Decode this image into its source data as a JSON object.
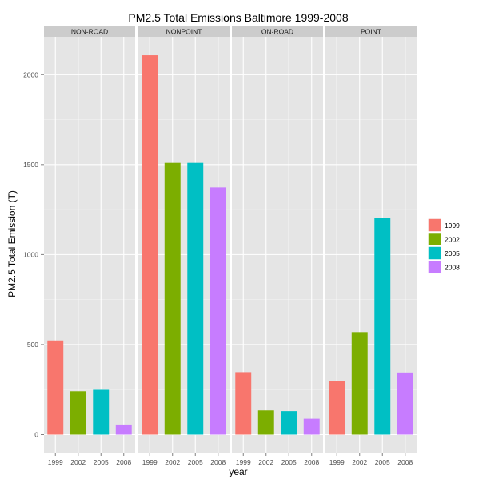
{
  "chart_data": {
    "type": "bar",
    "title": "PM2.5 Total Emissions Baltimore 1999-2008",
    "xlabel": "year",
    "ylabel": "PM2.5 Total Emission (T)",
    "categories": [
      "1999",
      "2002",
      "2005",
      "2008"
    ],
    "ylim": [
      -100,
      2210
    ],
    "yticks": [
      "0",
      "500",
      "1000",
      "1500",
      "2000"
    ],
    "legend_position": "right",
    "grid": true,
    "colors": {
      "1999": "#F8766D",
      "2002": "#7CAE00",
      "2005": "#00BFC4",
      "2008": "#C77CFF",
      "panel_background": "#E5E5E5",
      "strip_background": "#CCCCCC",
      "grid_line": "#FFFFFF"
    },
    "legend": [
      "1999",
      "2002",
      "2005",
      "2008"
    ],
    "facets": [
      {
        "name": "NON-ROAD",
        "values": [
          522.9,
          240.8,
          248.9,
          55.8
        ]
      },
      {
        "name": "NONPOINT",
        "values": [
          2107.6,
          1509.5,
          1509.5,
          1373.2
        ]
      },
      {
        "name": "ON-ROAD",
        "values": [
          346.8,
          134.3,
          130.4,
          88.3
        ]
      },
      {
        "name": "POINT",
        "values": [
          296.8,
          569.3,
          1202.5,
          344.98
        ]
      }
    ]
  }
}
